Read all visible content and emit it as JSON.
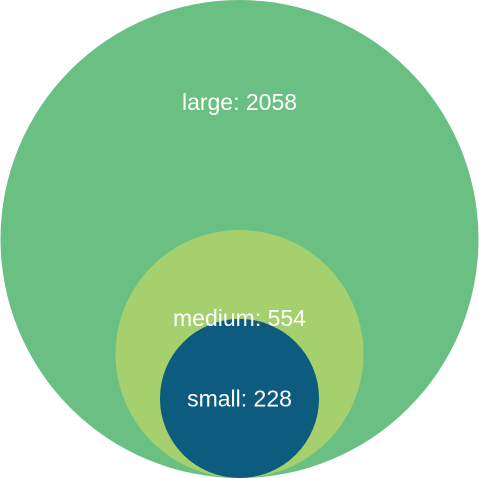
{
  "chart_data": {
    "type": "nested-bubble",
    "bubbles": [
      {
        "name": "large",
        "value": 2058,
        "label": "large: 2058",
        "color": "#6abf82"
      },
      {
        "name": "medium",
        "value": 554,
        "label": "medium: 554",
        "color": "#a6cf6e"
      },
      {
        "name": "small",
        "value": 228,
        "label": "small: 228",
        "color": "#0d5b7e"
      }
    ],
    "legend": "none",
    "grid": false
  }
}
